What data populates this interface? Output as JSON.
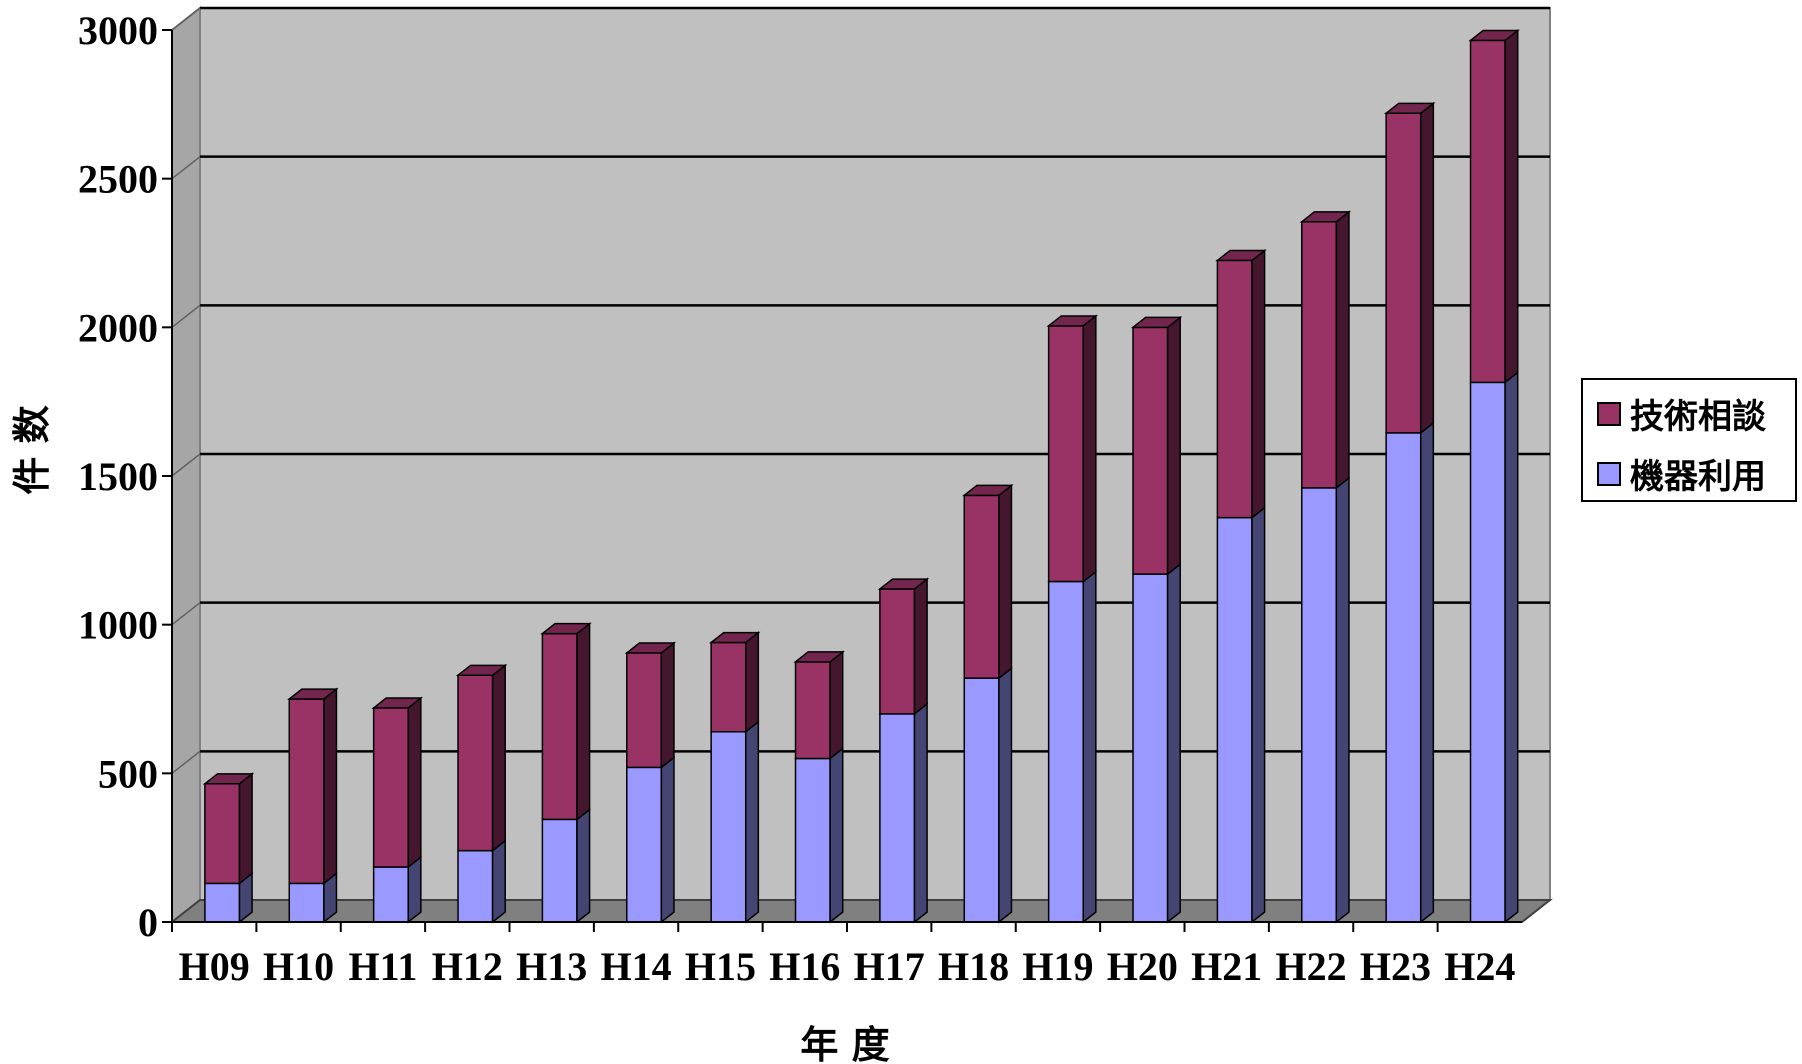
{
  "chart_data": {
    "type": "bar",
    "stacked": true,
    "three_d": true,
    "title": "",
    "xlabel": "年 度",
    "ylabel": "件 数",
    "ylim": [
      0,
      3000
    ],
    "yticks": [
      0,
      500,
      1000,
      1500,
      2000,
      2500,
      3000
    ],
    "grid": true,
    "legend_position": "right",
    "categories": [
      "H09",
      "H10",
      "H11",
      "H12",
      "H13",
      "H14",
      "H15",
      "H16",
      "H17",
      "H18",
      "H19",
      "H20",
      "H21",
      "H22",
      "H23",
      "H24"
    ],
    "series": [
      {
        "name": "機器利用",
        "color": "#9999ff",
        "values": [
          130,
          130,
          185,
          240,
          345,
          520,
          640,
          550,
          700,
          820,
          1145,
          1170,
          1360,
          1460,
          1645,
          1815
        ]
      },
      {
        "name": "技術相談",
        "color": "#993366",
        "values": [
          335,
          620,
          535,
          590,
          625,
          385,
          300,
          325,
          420,
          615,
          860,
          830,
          865,
          895,
          1075,
          1150
        ]
      }
    ],
    "legend": [
      {
        "name": "技術相談",
        "color": "#993366"
      },
      {
        "name": "機器利用",
        "color": "#9999ff"
      }
    ]
  }
}
